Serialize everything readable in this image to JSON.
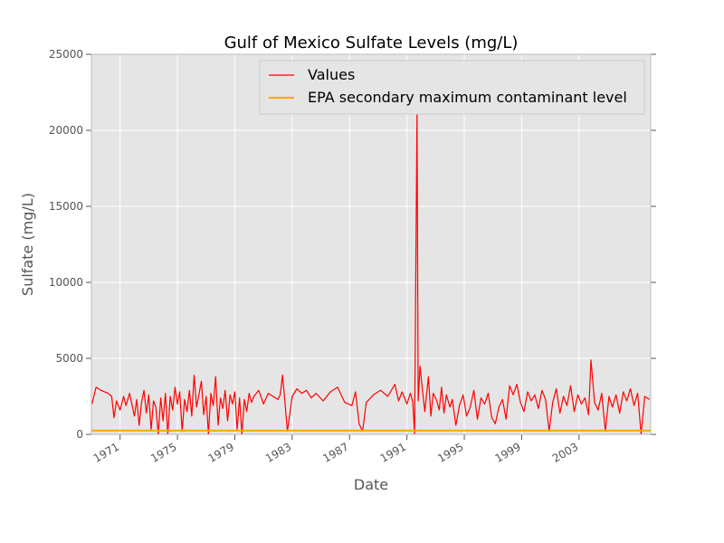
{
  "chart_data": {
    "type": "line",
    "title": "Gulf of Mexico Sulfate Levels (mg/L)",
    "xlabel": "Date",
    "ylabel": "Sulfate (mg/L)",
    "xlim": [
      "1969-01-01",
      "2007-12-31"
    ],
    "ylim": [
      0,
      25000
    ],
    "x_ticks": [
      "1971",
      "1975",
      "1979",
      "1983",
      "1987",
      "1991",
      "1995",
      "1999",
      "2003"
    ],
    "y_ticks": [
      "0",
      "5000",
      "10000",
      "15000",
      "20000",
      "25000"
    ],
    "grid": true,
    "legend_position": "top-right",
    "series": [
      {
        "name": "Values",
        "color": "#ff0000",
        "points": [
          [
            "1969-01-15",
            2000
          ],
          [
            "1969-05-01",
            3100
          ],
          [
            "1969-09-01",
            2900
          ],
          [
            "1970-03-01",
            2700
          ],
          [
            "1970-06-01",
            2500
          ],
          [
            "1970-08-01",
            1100
          ],
          [
            "1970-10-01",
            2200
          ],
          [
            "1971-01-01",
            1600
          ],
          [
            "1971-04-01",
            2500
          ],
          [
            "1971-06-01",
            1900
          ],
          [
            "1971-09-01",
            2700
          ],
          [
            "1972-01-01",
            1200
          ],
          [
            "1972-03-01",
            2300
          ],
          [
            "1972-05-01",
            600
          ],
          [
            "1972-07-01",
            2100
          ],
          [
            "1972-09-01",
            2900
          ],
          [
            "1972-11-01",
            1400
          ],
          [
            "1973-01-01",
            2600
          ],
          [
            "1973-03-01",
            300
          ],
          [
            "1973-05-01",
            2200
          ],
          [
            "1973-07-01",
            1800
          ],
          [
            "1973-09-01",
            0
          ],
          [
            "1973-11-01",
            2400
          ],
          [
            "1974-01-01",
            900
          ],
          [
            "1974-03-01",
            2700
          ],
          [
            "1974-05-01",
            0
          ],
          [
            "1974-07-01",
            2500
          ],
          [
            "1974-09-01",
            1600
          ],
          [
            "1974-11-01",
            3100
          ],
          [
            "1975-01-01",
            2000
          ],
          [
            "1975-03-01",
            2800
          ],
          [
            "1975-05-01",
            200
          ],
          [
            "1975-07-01",
            2300
          ],
          [
            "1975-09-01",
            1500
          ],
          [
            "1975-11-01",
            2900
          ],
          [
            "1976-01-01",
            1200
          ],
          [
            "1976-03-01",
            3900
          ],
          [
            "1976-05-01",
            1800
          ],
          [
            "1976-07-01",
            2600
          ],
          [
            "1976-09-01",
            3500
          ],
          [
            "1976-11-01",
            1300
          ],
          [
            "1977-01-01",
            2500
          ],
          [
            "1977-03-01",
            0
          ],
          [
            "1977-05-01",
            2700
          ],
          [
            "1977-07-01",
            1900
          ],
          [
            "1977-09-01",
            3800
          ],
          [
            "1977-11-01",
            600
          ],
          [
            "1978-01-01",
            2400
          ],
          [
            "1978-03-01",
            1700
          ],
          [
            "1978-05-01",
            2900
          ],
          [
            "1978-07-01",
            900
          ],
          [
            "1978-09-01",
            2600
          ],
          [
            "1978-11-01",
            2000
          ],
          [
            "1979-01-01",
            2800
          ],
          [
            "1979-03-01",
            300
          ],
          [
            "1979-05-01",
            2400
          ],
          [
            "1979-07-01",
            0
          ],
          [
            "1979-09-01",
            2300
          ],
          [
            "1979-11-01",
            1500
          ],
          [
            "1980-01-01",
            2700
          ],
          [
            "1980-03-01",
            2100
          ],
          [
            "1980-05-01",
            2500
          ],
          [
            "1980-09-01",
            2900
          ],
          [
            "1981-01-01",
            2000
          ],
          [
            "1981-05-01",
            2700
          ],
          [
            "1981-09-01",
            2500
          ],
          [
            "1982-01-01",
            2300
          ],
          [
            "1982-03-01",
            2600
          ],
          [
            "1982-05-01",
            3900
          ],
          [
            "1982-07-01",
            2100
          ],
          [
            "1982-09-01",
            200
          ],
          [
            "1983-01-01",
            2500
          ],
          [
            "1983-05-01",
            3000
          ],
          [
            "1983-09-01",
            2700
          ],
          [
            "1984-01-01",
            2900
          ],
          [
            "1984-05-01",
            2400
          ],
          [
            "1984-09-01",
            2700
          ],
          [
            "1985-03-01",
            2200
          ],
          [
            "1985-09-01",
            2800
          ],
          [
            "1986-03-01",
            3100
          ],
          [
            "1986-09-01",
            2100
          ],
          [
            "1987-03-01",
            1900
          ],
          [
            "1987-06-01",
            2800
          ],
          [
            "1987-09-01",
            700
          ],
          [
            "1987-12-01",
            200
          ],
          [
            "1988-03-01",
            2100
          ],
          [
            "1988-09-01",
            2600
          ],
          [
            "1989-03-01",
            2900
          ],
          [
            "1989-09-01",
            2500
          ],
          [
            "1990-03-01",
            3300
          ],
          [
            "1990-06-01",
            2200
          ],
          [
            "1990-09-01",
            2800
          ],
          [
            "1991-01-01",
            2000
          ],
          [
            "1991-04-01",
            2700
          ],
          [
            "1991-06-01",
            2100
          ],
          [
            "1991-07-15",
            0
          ],
          [
            "1991-09-15",
            21200
          ],
          [
            "1991-10-15",
            2200
          ],
          [
            "1991-12-01",
            4500
          ],
          [
            "1992-02-01",
            2900
          ],
          [
            "1992-04-01",
            1500
          ],
          [
            "1992-07-01",
            3800
          ],
          [
            "1992-09-01",
            1200
          ],
          [
            "1992-11-01",
            2700
          ],
          [
            "1993-02-01",
            2200
          ],
          [
            "1993-04-01",
            1600
          ],
          [
            "1993-06-01",
            3100
          ],
          [
            "1993-08-01",
            1400
          ],
          [
            "1993-10-01",
            2600
          ],
          [
            "1994-01-01",
            1800
          ],
          [
            "1994-03-01",
            2300
          ],
          [
            "1994-06-01",
            600
          ],
          [
            "1994-09-01",
            1900
          ],
          [
            "1994-12-01",
            2600
          ],
          [
            "1995-03-01",
            1200
          ],
          [
            "1995-06-01",
            1800
          ],
          [
            "1995-09-01",
            2900
          ],
          [
            "1995-12-01",
            1000
          ],
          [
            "1996-03-01",
            2400
          ],
          [
            "1996-06-01",
            2000
          ],
          [
            "1996-09-01",
            2700
          ],
          [
            "1996-12-01",
            1100
          ],
          [
            "1997-03-01",
            700
          ],
          [
            "1997-06-01",
            1800
          ],
          [
            "1997-09-01",
            2300
          ],
          [
            "1997-12-01",
            1000
          ],
          [
            "1998-03-01",
            3200
          ],
          [
            "1998-06-01",
            2600
          ],
          [
            "1998-09-01",
            3300
          ],
          [
            "1998-12-01",
            2100
          ],
          [
            "1999-03-01",
            1500
          ],
          [
            "1999-06-01",
            2800
          ],
          [
            "1999-09-01",
            2200
          ],
          [
            "1999-12-01",
            2600
          ],
          [
            "2000-03-01",
            1700
          ],
          [
            "2000-06-01",
            2900
          ],
          [
            "2000-09-01",
            2300
          ],
          [
            "2000-12-01",
            200
          ],
          [
            "2001-03-01",
            2100
          ],
          [
            "2001-06-01",
            3000
          ],
          [
            "2001-09-01",
            1400
          ],
          [
            "2001-12-01",
            2500
          ],
          [
            "2002-03-01",
            1900
          ],
          [
            "2002-06-01",
            3200
          ],
          [
            "2002-09-01",
            1500
          ],
          [
            "2002-12-01",
            2600
          ],
          [
            "2003-03-01",
            2000
          ],
          [
            "2003-06-01",
            2400
          ],
          [
            "2003-09-01",
            1300
          ],
          [
            "2003-11-01",
            4900
          ],
          [
            "2004-02-01",
            2100
          ],
          [
            "2004-05-01",
            1600
          ],
          [
            "2004-08-01",
            2700
          ],
          [
            "2004-11-01",
            200
          ],
          [
            "2005-02-01",
            2500
          ],
          [
            "2005-05-01",
            1800
          ],
          [
            "2005-08-01",
            2600
          ],
          [
            "2005-11-01",
            1400
          ],
          [
            "2006-02-01",
            2800
          ],
          [
            "2006-05-01",
            2200
          ],
          [
            "2006-08-01",
            3000
          ],
          [
            "2006-11-01",
            1900
          ],
          [
            "2007-02-01",
            2700
          ],
          [
            "2007-05-01",
            0
          ],
          [
            "2007-08-01",
            2500
          ],
          [
            "2007-12-01",
            2300
          ]
        ]
      },
      {
        "name": "EPA secondary maximum contaminant level",
        "color": "#ffa500",
        "points": [
          [
            "1969-01-01",
            250
          ],
          [
            "2007-12-31",
            250
          ]
        ]
      }
    ],
    "background_color": "#e5e5e5"
  }
}
